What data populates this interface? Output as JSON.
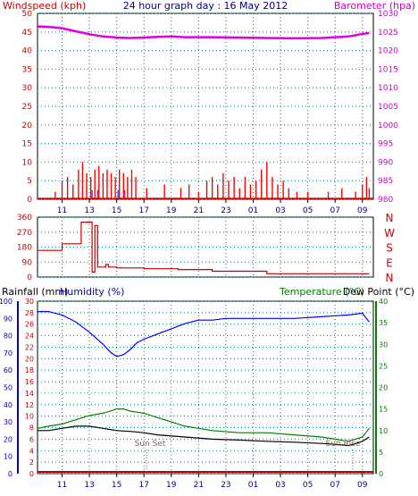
{
  "title": "24 hour graph day : 16 May 2012",
  "colors": {
    "wind": "#ff0000",
    "barometer": "#e000e0",
    "gust": "#0000ff",
    "direction": "#c00000",
    "humidity": "#0000ff",
    "temperature": "#008000",
    "dewpoint": "#000000",
    "rain": "#c00000",
    "grid": "#008080",
    "axis": "#000000",
    "rainfall_label": "#c00000",
    "humidity_label": "#0000c0",
    "temperature_label": "#008000",
    "dewpoint_label": "#000000",
    "barometer_label": "#cc00cc",
    "wind_label": "#cc0000",
    "direction_label": "#cc0000"
  },
  "x_ticks": [
    "11",
    "13",
    "15",
    "17",
    "19",
    "21",
    "23",
    "01",
    "03",
    "05",
    "07",
    "09"
  ],
  "panel1": {
    "left_label": "Windspeed (kph)",
    "right_label": "Barometer (hpa)",
    "left_ticks": [
      "0",
      "5",
      "10",
      "15",
      "20",
      "25",
      "30",
      "35",
      "40",
      "45",
      "50"
    ],
    "right_ticks": [
      "980",
      "985",
      "990",
      "995",
      "1000",
      "1005",
      "1010",
      "1015",
      "1020",
      "1025",
      "1030"
    ],
    "right_ticks_lower": [
      "990",
      "985",
      "980"
    ]
  },
  "panel2": {
    "left_ticks": [
      "0",
      "90",
      "180",
      "270",
      "360"
    ],
    "compass": [
      "N",
      "W",
      "S",
      "E",
      "N"
    ]
  },
  "panel3": {
    "rain_label": "Rainfall (mm)",
    "humidity_label": "Humidity (%)",
    "temp_label": "Temperature (°C)",
    "dew_label": "Dew Point (°C)",
    "humidity_ticks": [
      "0",
      "10",
      "20",
      "30",
      "40",
      "50",
      "60",
      "70",
      "80",
      "90",
      "100"
    ],
    "rain_ticks": [
      "0",
      "2",
      "4",
      "6",
      "8",
      "10",
      "12",
      "14",
      "16",
      "18",
      "20",
      "22",
      "24",
      "26",
      "28",
      "30"
    ],
    "temp_ticks": [
      "0",
      "5",
      "10",
      "15",
      "20",
      "25",
      "30",
      "35",
      "40"
    ],
    "sunset_label": "Sun Set",
    "sunrise_label": "Sun Rise"
  },
  "chart_data": [
    {
      "type": "line",
      "title": "24 hour graph day : 16 May 2012",
      "ylabel": "Windspeed (kph)",
      "y2label": "Barometer (hpa)",
      "ylim": [
        0,
        50
      ],
      "y2lim": [
        980,
        1030
      ],
      "x_hours": [
        10,
        12,
        14,
        16,
        18,
        20,
        22,
        24,
        26,
        28,
        30,
        32,
        34
      ],
      "series": [
        {
          "name": "Barometer (hpa)",
          "axis": "right",
          "x": [
            9.2,
            10,
            11,
            12,
            13,
            14,
            15,
            16,
            17,
            18,
            19,
            20,
            22,
            24,
            26,
            28,
            30,
            32,
            33,
            33.5
          ],
          "values": [
            1026.5,
            1026.4,
            1026.0,
            1025.2,
            1024.4,
            1023.8,
            1023.5,
            1023.4,
            1023.5,
            1023.7,
            1023.8,
            1023.6,
            1023.6,
            1023.5,
            1023.4,
            1023.3,
            1023.4,
            1023.8,
            1024.5,
            1024.7
          ]
        }
      ],
      "wind_bars": {
        "x": [
          10.5,
          11,
          11.4,
          11.8,
          12.2,
          12.5,
          12.8,
          13.1,
          13.4,
          13.7,
          14,
          14.3,
          14.6,
          14.9,
          15.2,
          15.5,
          15.8,
          16.1,
          16.4,
          17.2,
          18.5,
          19.7,
          20.3,
          21,
          21.6,
          22,
          22.4,
          22.8,
          23.2,
          23.6,
          24,
          24.4,
          24.8,
          25.2,
          25.6,
          26,
          26.4,
          26.8,
          27.2,
          27.6,
          28.2,
          29,
          30.5,
          31.5,
          32.5,
          33,
          33.3,
          33.5
        ],
        "values": [
          2,
          5,
          6,
          4,
          8,
          10,
          7,
          6,
          8,
          9,
          7,
          8,
          7,
          6,
          8,
          7,
          6,
          8,
          6,
          3,
          4,
          3,
          4,
          2,
          5,
          6,
          4,
          7,
          5,
          6,
          3,
          6,
          4,
          5,
          8,
          10,
          6,
          4,
          5,
          3,
          2,
          2,
          2,
          3,
          2,
          4,
          6,
          3
        ]
      }
    },
    {
      "type": "line",
      "ylabel": "Direction",
      "ylim": [
        0,
        360
      ],
      "x_hours": [
        10,
        12,
        14,
        16,
        18,
        20,
        22,
        24,
        26,
        28,
        30,
        32,
        34
      ],
      "series": [
        {
          "name": "Direction",
          "x": [
            9.2,
            10.8,
            11.0,
            12.2,
            12.4,
            13.0,
            13.2,
            13.4,
            13.6,
            14.0,
            14.2,
            14.4,
            15.0,
            17.0,
            19.5,
            22.0,
            26.0,
            33.5
          ],
          "values": [
            160,
            160,
            200,
            200,
            330,
            330,
            30,
            310,
            60,
            60,
            75,
            60,
            55,
            50,
            45,
            35,
            20,
            20
          ]
        }
      ]
    },
    {
      "type": "line",
      "ylabel": "Humidity (%)",
      "y2label": "Temperature (°C)",
      "ylim": [
        0,
        100
      ],
      "y2lim": [
        0,
        40
      ],
      "x_hours": [
        10,
        12,
        14,
        16,
        18,
        20,
        22,
        24,
        26,
        28,
        30,
        32,
        34
      ],
      "series": [
        {
          "name": "Humidity (%)",
          "axis": "left",
          "x": [
            9.2,
            10,
            11,
            12,
            13,
            14,
            14.6,
            15,
            15.5,
            16,
            16.5,
            17,
            18,
            19,
            20,
            21,
            22,
            23,
            24,
            26,
            28,
            30,
            32,
            33,
            33.5
          ],
          "values": [
            94,
            94,
            92,
            88,
            82,
            75,
            70,
            68,
            69,
            72,
            76,
            78,
            81,
            84,
            87,
            89,
            89,
            90,
            90,
            90,
            90,
            91,
            92,
            93,
            88
          ]
        },
        {
          "name": "Temperature (°C)",
          "axis": "right",
          "x": [
            9.2,
            10,
            11,
            12,
            13,
            14,
            15,
            15.5,
            16,
            17,
            18,
            19,
            20,
            21,
            22,
            24,
            26,
            28,
            30,
            31,
            32,
            33,
            33.5
          ],
          "values": [
            10.5,
            11,
            11.5,
            12.5,
            13.5,
            14,
            15,
            15,
            14.5,
            14,
            13,
            12,
            11,
            10.5,
            10,
            9.5,
            9.5,
            9,
            8.5,
            8,
            7.5,
            8.5,
            10.5
          ]
        },
        {
          "name": "Dew Point (°C)",
          "axis": "right",
          "x": [
            9.2,
            10,
            11,
            12,
            13,
            14,
            15,
            16,
            17,
            18,
            20,
            22,
            24,
            26,
            28,
            30,
            31,
            32,
            33,
            33.5
          ],
          "values": [
            10,
            10,
            10.5,
            11,
            11,
            10.5,
            10,
            9.8,
            9.5,
            9,
            8.5,
            8,
            7.8,
            7.5,
            7.3,
            7.0,
            6.8,
            6.5,
            7.5,
            8.5
          ]
        },
        {
          "name": "Rainfall (mm)",
          "axis": "rain",
          "x": [
            9.2,
            33.5
          ],
          "values": [
            0,
            0
          ]
        }
      ],
      "annotations": [
        {
          "text": "Sun Set",
          "x": 17.2
        },
        {
          "text": "Sun Rise",
          "x": 32.3
        }
      ]
    }
  ]
}
